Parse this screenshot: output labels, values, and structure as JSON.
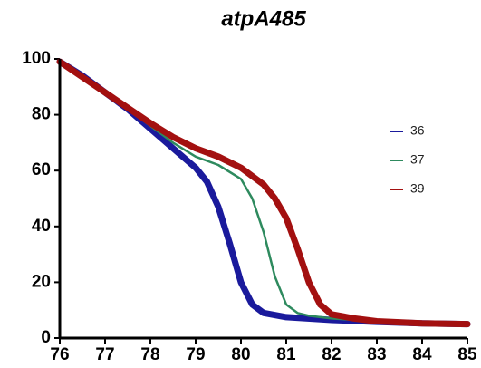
{
  "chart_data": {
    "type": "line",
    "title": "atpA485",
    "xlim": [
      76,
      85
    ],
    "xticks": [
      76,
      77,
      78,
      79,
      80,
      81,
      82,
      83,
      84,
      85
    ],
    "ylim": [
      0,
      100
    ],
    "yticks": [
      0,
      20,
      40,
      60,
      80,
      100
    ],
    "legend": "right",
    "series": [
      {
        "name": "36",
        "color": "#1a1a9c",
        "x": [
          76,
          76.5,
          77,
          77.5,
          78,
          78.5,
          79,
          79.25,
          79.5,
          79.75,
          80,
          80.25,
          80.5,
          81,
          82,
          83,
          84,
          85
        ],
        "values": [
          99,
          94,
          88,
          82,
          75,
          68,
          61,
          56,
          47,
          34,
          20,
          12,
          9,
          7.5,
          6.5,
          5.8,
          5.3,
          5
        ]
      },
      {
        "name": "37",
        "color": "#2e8a5e",
        "x": [
          76,
          77,
          78,
          78.5,
          79,
          79.5,
          80,
          80.25,
          80.5,
          80.75,
          81,
          81.25,
          81.5,
          82,
          83,
          84,
          85
        ],
        "values": [
          99,
          88,
          76,
          70,
          65,
          62,
          57,
          50,
          38,
          22,
          12,
          9,
          8,
          7,
          6,
          5.3,
          5
        ]
      },
      {
        "name": "39",
        "color": "#a31010",
        "x": [
          76,
          77,
          78,
          78.5,
          79,
          79.5,
          80,
          80.5,
          80.75,
          81,
          81.25,
          81.5,
          81.75,
          82,
          82.5,
          83,
          84,
          85
        ],
        "values": [
          99,
          88,
          77,
          72,
          68,
          65,
          61,
          55,
          50,
          43,
          32,
          20,
          12,
          8.5,
          7,
          6,
          5.3,
          5
        ]
      }
    ]
  }
}
